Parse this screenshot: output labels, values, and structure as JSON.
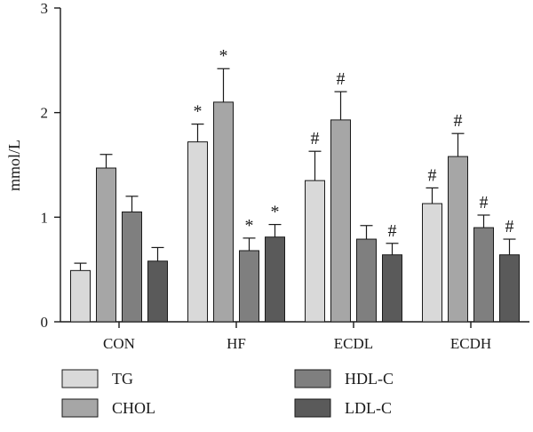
{
  "chart_data": {
    "type": "bar",
    "title": "",
    "xlabel": "",
    "ylabel": "mmol/L",
    "ylim": [
      0,
      3
    ],
    "yticks": [
      0,
      1,
      2,
      3
    ],
    "grid": false,
    "legend_position": "bottom",
    "categories": [
      "CON",
      "HF",
      "ECDL",
      "ECDH"
    ],
    "series": [
      {
        "name": "TG",
        "color": "#d9d9d9",
        "values": [
          0.49,
          1.72,
          1.35,
          1.13
        ],
        "errors": [
          0.07,
          0.17,
          0.28,
          0.15
        ],
        "annotations": [
          "",
          "*",
          "#",
          "#"
        ]
      },
      {
        "name": "CHOL",
        "color": "#a6a6a6",
        "values": [
          1.47,
          2.1,
          1.93,
          1.58
        ],
        "errors": [
          0.13,
          0.32,
          0.27,
          0.22
        ],
        "annotations": [
          "",
          "*",
          "#",
          "#"
        ]
      },
      {
        "name": "HDL-C",
        "color": "#7f7f7f",
        "values": [
          1.05,
          0.68,
          0.79,
          0.9
        ],
        "errors": [
          0.15,
          0.12,
          0.13,
          0.12
        ],
        "annotations": [
          "",
          "*",
          "",
          "#"
        ]
      },
      {
        "name": "LDL-C",
        "color": "#5a5a5a",
        "values": [
          0.58,
          0.81,
          0.64,
          0.64
        ],
        "errors": [
          0.13,
          0.12,
          0.11,
          0.15
        ],
        "annotations": [
          "",
          "*",
          "#",
          "#"
        ]
      }
    ]
  }
}
